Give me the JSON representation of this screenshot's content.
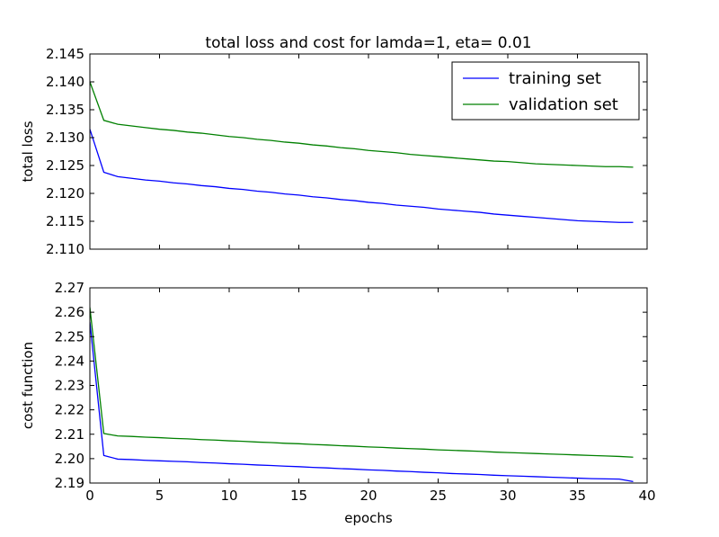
{
  "chart_data": [
    {
      "type": "line",
      "title": "total loss and cost for lamda=1, eta= 0.01",
      "xlabel": "",
      "ylabel": "total loss",
      "xlim": [
        0,
        40
      ],
      "ylim": [
        2.11,
        2.145
      ],
      "xticks": [
        "0",
        "5",
        "10",
        "15",
        "20",
        "25",
        "30",
        "35",
        "40"
      ],
      "xticks_visible": false,
      "yticks": [
        "2.110",
        "2.115",
        "2.120",
        "2.125",
        "2.130",
        "2.135",
        "2.140",
        "2.145"
      ],
      "grid": false,
      "legend_position": "top-right",
      "x": [
        0,
        1,
        2,
        3,
        4,
        5,
        6,
        7,
        8,
        9,
        10,
        11,
        12,
        13,
        14,
        15,
        16,
        17,
        18,
        19,
        20,
        21,
        22,
        23,
        24,
        25,
        26,
        27,
        28,
        29,
        30,
        31,
        32,
        33,
        34,
        35,
        36,
        37,
        38,
        39
      ],
      "series": [
        {
          "name": "training set",
          "color": "#0000ff",
          "values": [
            2.1315,
            2.1238,
            2.123,
            2.1227,
            2.1224,
            2.1222,
            2.1219,
            2.1217,
            2.1214,
            2.1212,
            2.1209,
            2.1207,
            2.1204,
            2.1202,
            2.1199,
            2.1197,
            2.1194,
            2.1192,
            2.1189,
            2.1187,
            2.1184,
            2.1182,
            2.1179,
            2.1177,
            2.1175,
            2.1172,
            2.117,
            2.1168,
            2.1166,
            2.1163,
            2.1161,
            2.1159,
            2.1157,
            2.1155,
            2.1153,
            2.1151,
            2.115,
            2.1149,
            2.1148,
            2.1148
          ]
        },
        {
          "name": "validation set",
          "color": "#008000",
          "values": [
            2.14,
            2.1331,
            2.1324,
            2.1321,
            2.1318,
            2.1315,
            2.1313,
            2.131,
            2.1308,
            2.1305,
            2.1302,
            2.13,
            2.1297,
            2.1295,
            2.1292,
            2.129,
            2.1287,
            2.1285,
            2.1282,
            2.128,
            2.1277,
            2.1275,
            2.1273,
            2.127,
            2.1268,
            2.1266,
            2.1264,
            2.1262,
            2.126,
            2.1258,
            2.1257,
            2.1255,
            2.1253,
            2.1252,
            2.1251,
            2.125,
            2.1249,
            2.1248,
            2.1248,
            2.1247
          ]
        }
      ]
    },
    {
      "type": "line",
      "title": "",
      "xlabel": "epochs",
      "ylabel": "cost function",
      "xlim": [
        0,
        40
      ],
      "ylim": [
        2.19,
        2.27
      ],
      "xticks": [
        "0",
        "5",
        "10",
        "15",
        "20",
        "25",
        "30",
        "35",
        "40"
      ],
      "xticks_visible": true,
      "yticks": [
        "2.19",
        "2.20",
        "2.21",
        "2.22",
        "2.23",
        "2.24",
        "2.25",
        "2.26",
        "2.27"
      ],
      "grid": false,
      "legend_position": "none",
      "x": [
        0,
        1,
        2,
        3,
        4,
        5,
        6,
        7,
        8,
        9,
        10,
        11,
        12,
        13,
        14,
        15,
        16,
        17,
        18,
        19,
        20,
        21,
        22,
        23,
        24,
        25,
        26,
        27,
        28,
        29,
        30,
        31,
        32,
        33,
        34,
        35,
        36,
        37,
        38,
        39
      ],
      "series": [
        {
          "name": "training set",
          "color": "#0000ff",
          "values": [
            2.256,
            2.2013,
            2.1998,
            2.1996,
            2.1993,
            2.1991,
            2.1989,
            2.1987,
            2.1984,
            2.1982,
            2.1979,
            2.1977,
            2.1974,
            2.1972,
            2.1969,
            2.1967,
            2.1964,
            2.1962,
            2.1959,
            2.1957,
            2.1954,
            2.1952,
            2.1949,
            2.1947,
            2.1944,
            2.1942,
            2.1939,
            2.1937,
            2.1935,
            2.1932,
            2.193,
            2.1928,
            2.1926,
            2.1924,
            2.1922,
            2.192,
            2.1918,
            2.1917,
            2.1916,
            2.1906
          ]
        },
        {
          "name": "validation set",
          "color": "#008000",
          "values": [
            2.262,
            2.2103,
            2.2093,
            2.2091,
            2.2088,
            2.2086,
            2.2083,
            2.2081,
            2.2078,
            2.2076,
            2.2073,
            2.2071,
            2.2068,
            2.2066,
            2.2063,
            2.2061,
            2.2058,
            2.2056,
            2.2053,
            2.2051,
            2.2048,
            2.2046,
            2.2043,
            2.2041,
            2.2039,
            2.2036,
            2.2034,
            2.2032,
            2.203,
            2.2027,
            2.2025,
            2.2023,
            2.2021,
            2.2019,
            2.2017,
            2.2015,
            2.2013,
            2.2011,
            2.2009,
            2.2006
          ]
        }
      ]
    }
  ]
}
